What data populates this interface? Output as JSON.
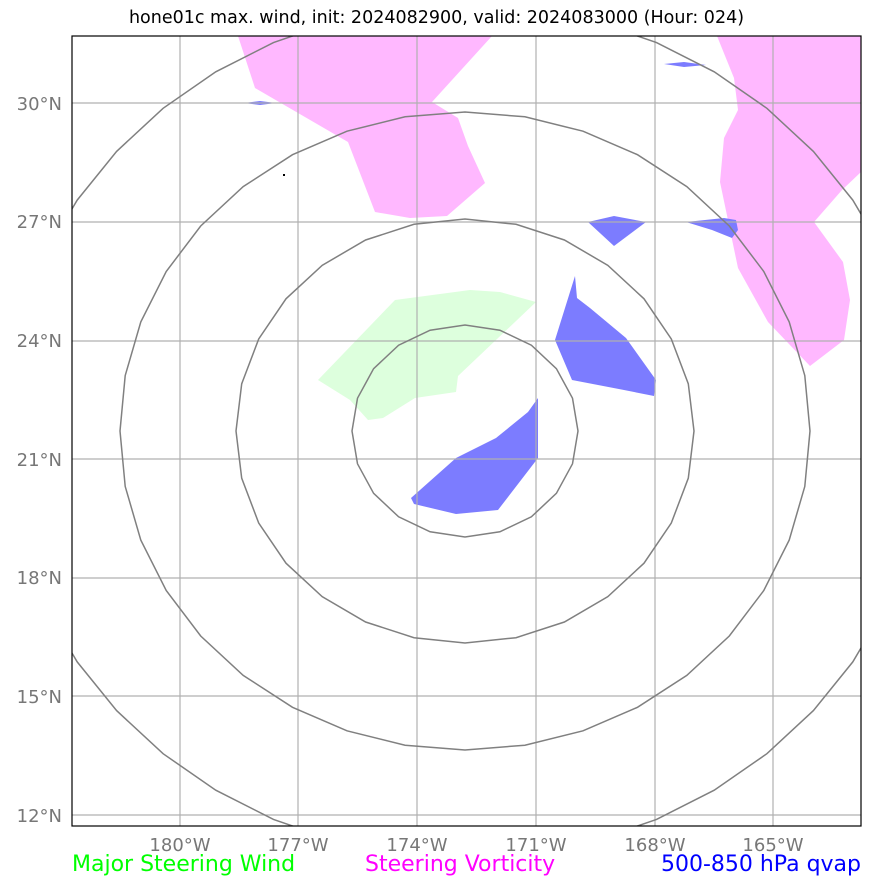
{
  "title": "hone01c max. wind, init: 2024082900, valid: 2024083000 (Hour: 024)",
  "lat_labels": [
    "30°N",
    "27°N",
    "24°N",
    "21°N",
    "18°N",
    "15°N",
    "12°N"
  ],
  "lon_labels": [
    "180°W",
    "177°W",
    "174°W",
    "171°W",
    "168°W",
    "165°W"
  ],
  "legend": {
    "steering_wind": "Major Steering Wind",
    "steering_vorticity": "Steering Vorticity",
    "qvap": "500-850 hPa qvap"
  },
  "colors": {
    "steering_wind": "#00ff00",
    "steering_vorticity": "#ff00ff",
    "qvap": "#0000ff",
    "wind_fill": "#ddffdd",
    "vorticity_fill": "#ffb8ff",
    "qvap_fill": "#7c7cff",
    "grid": "#b0b0b0",
    "range_rings": "#808080"
  },
  "map_extent": {
    "lon_min": -182.7,
    "lon_max": -162.8,
    "lat_min": 11.8,
    "lat_max": 31.7
  }
}
